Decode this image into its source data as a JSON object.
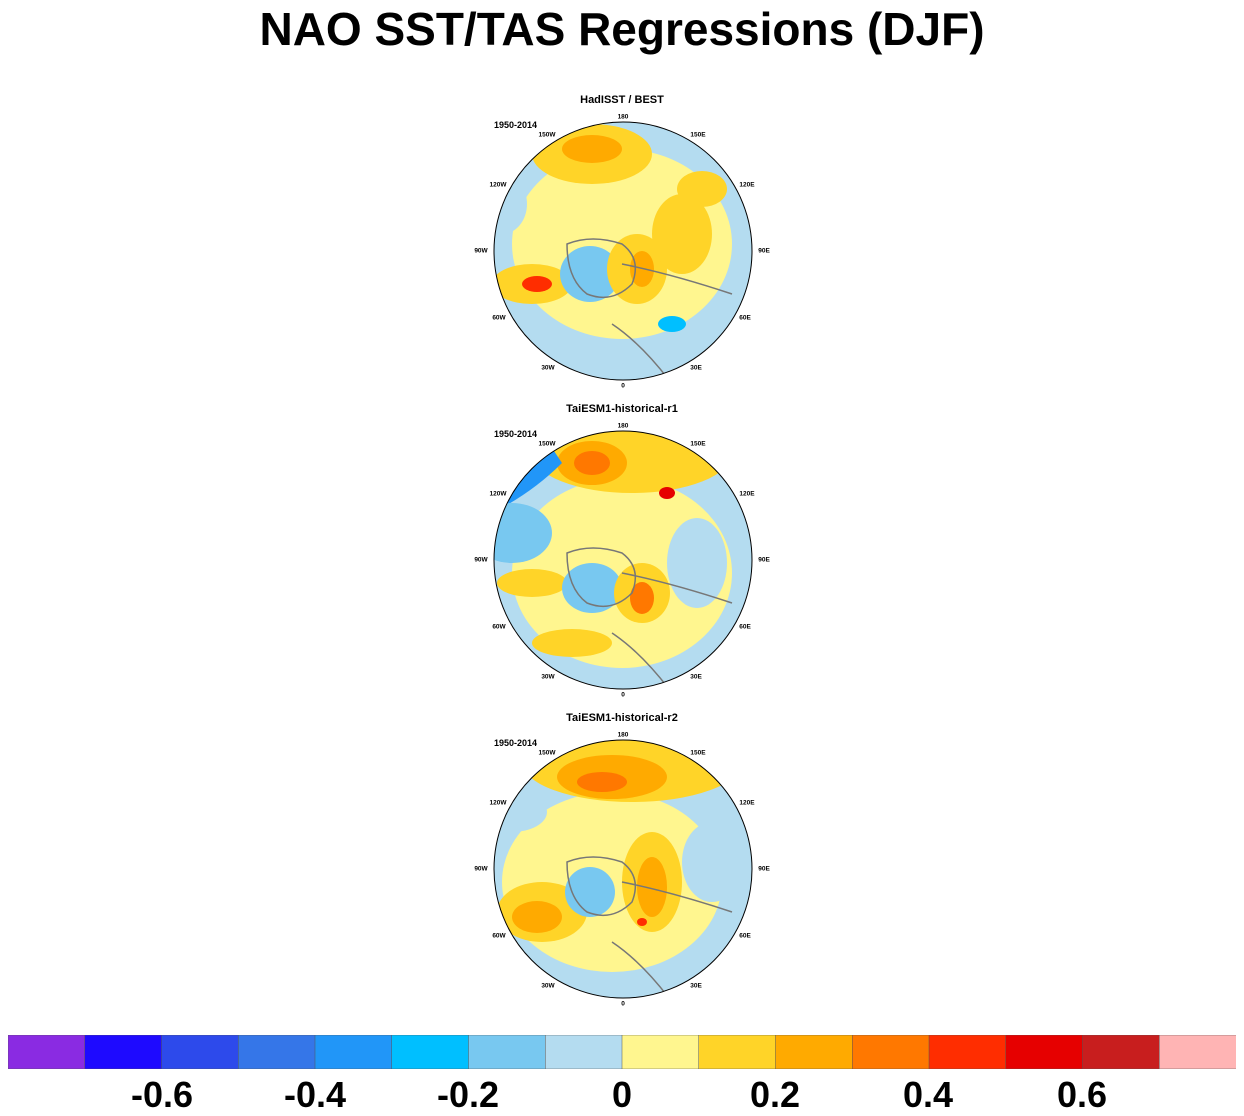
{
  "title": "NAO SST/TAS Regressions (DJF)",
  "panels": [
    {
      "title": "HadISST / BEST",
      "period": "1950-2014"
    },
    {
      "title": "TaiESM1-historical-r1",
      "period": "1950-2014"
    },
    {
      "title": "TaiESM1-historical-r2",
      "period": "1950-2014"
    }
  ],
  "longitude_labels": [
    "180",
    "150E",
    "120E",
    "90E",
    "60E",
    "30E",
    "0",
    "30W",
    "60W",
    "90W",
    "120W",
    "150W"
  ],
  "colorbar": {
    "colors": [
      "#8a2be2",
      "#1e0aff",
      "#2d4aeb",
      "#3576e8",
      "#2196f8",
      "#00bfff",
      "#78c8f0",
      "#b4dcf0",
      "#fff68f",
      "#ffd428",
      "#ffaa00",
      "#ff7800",
      "#ff2d00",
      "#e60000",
      "#c81e1e",
      "#ffb4b4"
    ],
    "tick_labels": [
      "-0.6",
      "-0.4",
      "-0.2",
      "0",
      "0.2",
      "0.4",
      "0.6"
    ]
  }
}
